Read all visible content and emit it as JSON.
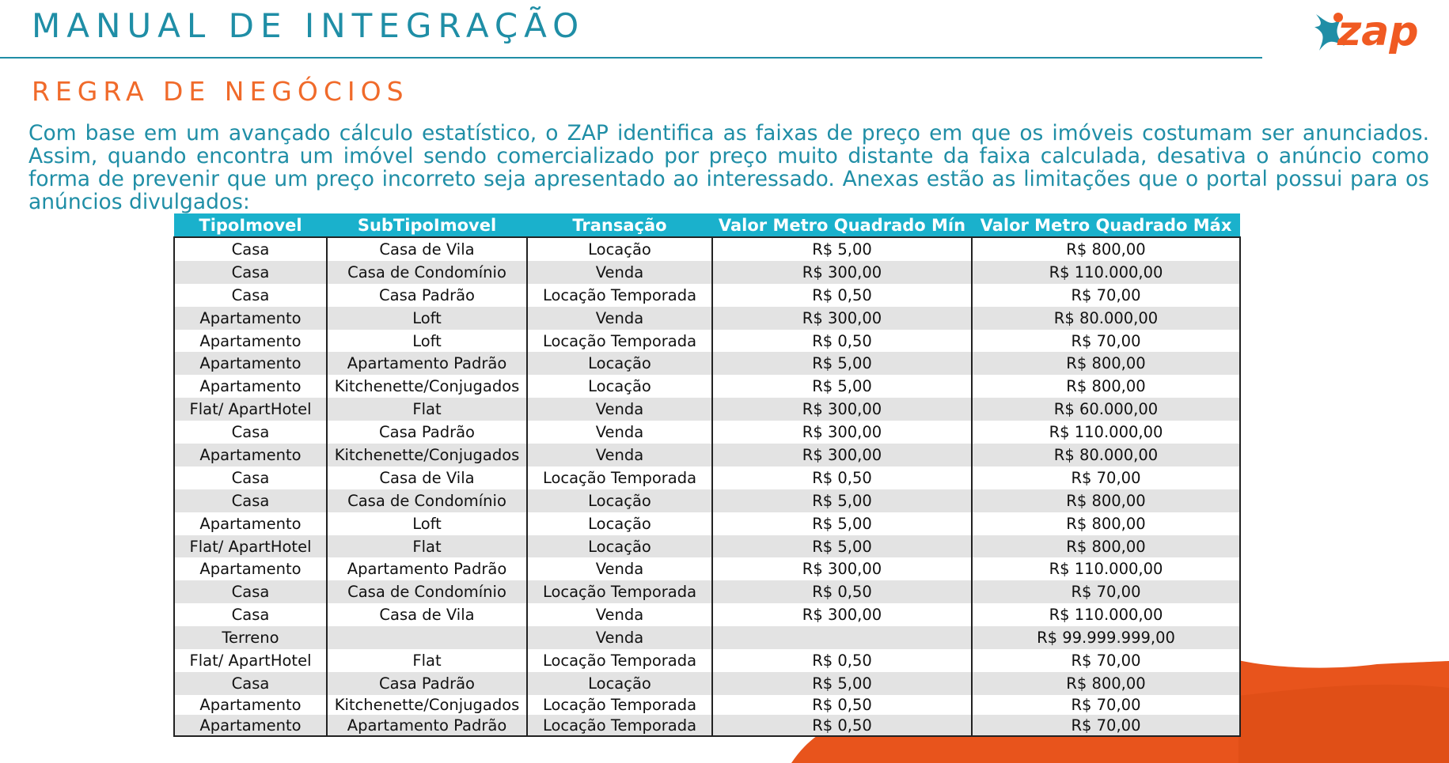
{
  "header": {
    "title": "MANUAL DE INTEGRAÇÃO",
    "logo_text": "zap",
    "subtitle": "REGRA DE NEGÓCIOS"
  },
  "intro_text": "Com base em um avançado cálculo estatístico, o ZAP identifica as faixas de preço em que os imóveis costumam ser anunciados. Assim, quando encontra um imóvel sendo comercializado por preço muito distante da faixa calculada, desativa o anúncio como forma de prevenir que um preço incorreto seja apresentado ao interessado. Anexas estão as limitações que o portal possui para os anúncios divulgados:",
  "colors": {
    "teal": "#1f8ea6",
    "header_bg": "#1ab1cc",
    "orange": "#f05a22"
  },
  "table": {
    "headers": [
      "TipoImovel",
      "SubTipoImovel",
      "Transação",
      "Valor Metro Quadrado Mín",
      "Valor Metro Quadrado Máx"
    ],
    "rows": [
      [
        "Casa",
        "Casa de Vila",
        "Locação",
        "R$ 5,00",
        "R$ 800,00"
      ],
      [
        "Casa",
        "Casa de Condomínio",
        "Venda",
        "R$ 300,00",
        "R$ 110.000,00"
      ],
      [
        "Casa",
        "Casa Padrão",
        "Locação Temporada",
        "R$ 0,50",
        "R$ 70,00"
      ],
      [
        "Apartamento",
        "Loft",
        "Venda",
        "R$ 300,00",
        "R$ 80.000,00"
      ],
      [
        "Apartamento",
        "Loft",
        "Locação Temporada",
        "R$ 0,50",
        "R$ 70,00"
      ],
      [
        "Apartamento",
        "Apartamento Padrão",
        "Locação",
        "R$ 5,00",
        "R$ 800,00"
      ],
      [
        "Apartamento",
        "Kitchenette/Conjugados",
        "Locação",
        "R$ 5,00",
        "R$ 800,00"
      ],
      [
        "Flat/ ApartHotel",
        "Flat",
        "Venda",
        "R$ 300,00",
        "R$ 60.000,00"
      ],
      [
        "Casa",
        "Casa Padrão",
        "Venda",
        "R$ 300,00",
        "R$ 110.000,00"
      ],
      [
        "Apartamento",
        "Kitchenette/Conjugados",
        "Venda",
        "R$ 300,00",
        "R$ 80.000,00"
      ],
      [
        "Casa",
        "Casa de Vila",
        "Locação Temporada",
        "R$ 0,50",
        "R$ 70,00"
      ],
      [
        "Casa",
        "Casa de Condomínio",
        "Locação",
        "R$ 5,00",
        "R$ 800,00"
      ],
      [
        "Apartamento",
        "Loft",
        "Locação",
        "R$ 5,00",
        "R$ 800,00"
      ],
      [
        "Flat/ ApartHotel",
        "Flat",
        "Locação",
        "R$ 5,00",
        "R$ 800,00"
      ],
      [
        "Apartamento",
        "Apartamento Padrão",
        "Venda",
        "R$ 300,00",
        "R$ 110.000,00"
      ],
      [
        "Casa",
        "Casa de Condomínio",
        "Locação Temporada",
        "R$ 0,50",
        "R$ 70,00"
      ],
      [
        "Casa",
        "Casa de Vila",
        "Venda",
        "R$ 300,00",
        "R$ 110.000,00"
      ],
      [
        "Terreno",
        "",
        "Venda",
        "",
        "R$ 99.999.999,00"
      ],
      [
        "Flat/ ApartHotel",
        "Flat",
        "Locação Temporada",
        "R$ 0,50",
        "R$ 70,00"
      ],
      [
        "Casa",
        "Casa Padrão",
        "Locação",
        "R$ 5,00",
        "R$ 800,00"
      ],
      [
        "Apartamento",
        "Kitchenette/Conjugados",
        "Locação Temporada",
        "R$ 0,50",
        "R$ 70,00"
      ],
      [
        "Apartamento",
        "Apartamento Padrão",
        "Locação Temporada",
        "R$ 0,50",
        "R$ 70,00"
      ]
    ]
  }
}
